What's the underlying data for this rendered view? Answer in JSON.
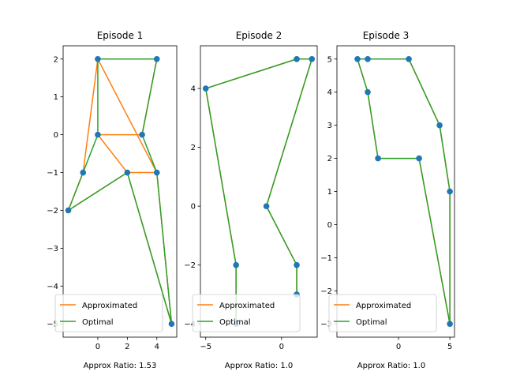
{
  "chart_data": [
    {
      "type": "line",
      "title": "Episode 1",
      "xlabel": "Approx Ratio: 1.53",
      "xlim": [
        -2.35,
        5.35
      ],
      "ylim": [
        -5.35,
        2.35
      ],
      "xticks": [
        0,
        2,
        4
      ],
      "yticks": [
        -5,
        -4,
        -3,
        -2,
        -1,
        0,
        1,
        2
      ],
      "grid": false,
      "legend_location": "lower left",
      "points": [
        [
          0,
          2
        ],
        [
          4,
          2
        ],
        [
          3,
          0
        ],
        [
          0,
          0
        ],
        [
          4,
          -1
        ],
        [
          2,
          -1
        ],
        [
          -1,
          -1
        ],
        [
          -2,
          -2
        ],
        [
          5,
          -5
        ]
      ],
      "series": [
        {
          "name": "Approximated",
          "color": "#ff7f0e",
          "x": [
            0,
            4,
            3,
            0,
            2,
            5,
            4,
            0,
            -1,
            -2,
            2,
            4
          ],
          "y": [
            2,
            2,
            0,
            0,
            -1,
            -5,
            -1,
            2,
            -1,
            -2,
            -1,
            -1
          ]
        },
        {
          "name": "Optimal",
          "color": "#2ca02c",
          "x": [
            0,
            4,
            3,
            4,
            5,
            2,
            -2,
            -1,
            0,
            0
          ],
          "y": [
            2,
            2,
            0,
            -1,
            -5,
            -1,
            -2,
            -1,
            0,
            2
          ]
        }
      ]
    },
    {
      "type": "line",
      "title": "Episode 2",
      "xlabel": "Approx Ratio: 1.0",
      "xlim": [
        -5.35,
        2.35
      ],
      "ylim": [
        -4.45,
        5.45
      ],
      "xticks": [
        -5,
        0
      ],
      "yticks": [
        -4,
        -2,
        0,
        2,
        4
      ],
      "grid": false,
      "legend_location": "lower left",
      "points": [
        [
          -5,
          4
        ],
        [
          1,
          5
        ],
        [
          2,
          5
        ],
        [
          -1,
          0
        ],
        [
          1,
          -2
        ],
        [
          1,
          -3
        ],
        [
          -3,
          -2
        ],
        [
          -3,
          -4
        ]
      ],
      "series": [
        {
          "name": "Approximated",
          "color": "#ff7f0e",
          "x": [
            -3,
            -3,
            -5,
            1,
            2,
            -1,
            1,
            1
          ],
          "y": [
            -4,
            -2,
            4,
            5,
            5,
            0,
            -2,
            -3
          ]
        },
        {
          "name": "Optimal",
          "color": "#2ca02c",
          "x": [
            -3,
            -3,
            -5,
            1,
            2,
            -1,
            1,
            1
          ],
          "y": [
            -4,
            -2,
            4,
            5,
            5,
            0,
            -2,
            -3
          ]
        }
      ]
    },
    {
      "type": "line",
      "title": "Episode 3",
      "xlabel": "Approx Ratio: 1.0",
      "xlim": [
        -6.0,
        5.45
      ],
      "ylim": [
        -3.4,
        5.4
      ],
      "xticks": [
        0,
        5
      ],
      "yticks": [
        -3,
        -2,
        -1,
        0,
        1,
        2,
        3,
        4,
        5
      ],
      "grid": false,
      "legend_location": "lower left",
      "points": [
        [
          -4,
          5
        ],
        [
          -3,
          5
        ],
        [
          1,
          5
        ],
        [
          -3,
          4
        ],
        [
          4,
          3
        ],
        [
          -2,
          2
        ],
        [
          2,
          2
        ],
        [
          5,
          1
        ],
        [
          5,
          -3
        ]
      ],
      "series": [
        {
          "name": "Approximated",
          "color": "#ff7f0e",
          "x": [
            5,
            5,
            4,
            1,
            -3,
            -4,
            -3,
            -2,
            2,
            5
          ],
          "y": [
            -3,
            1,
            3,
            5,
            5,
            5,
            4,
            2,
            2,
            -3
          ]
        },
        {
          "name": "Optimal",
          "color": "#2ca02c",
          "x": [
            5,
            5,
            4,
            1,
            -3,
            -4,
            -3,
            -2,
            2,
            5
          ],
          "y": [
            -3,
            1,
            3,
            5,
            5,
            5,
            4,
            2,
            2,
            -3
          ]
        }
      ]
    }
  ],
  "colors": {
    "approximated": "#ff7f0e",
    "optimal": "#2ca02c",
    "points": "#1f77b4",
    "axes": "#000000",
    "background": "#ffffff"
  }
}
